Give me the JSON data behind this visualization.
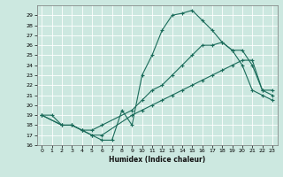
{
  "xlabel": "Humidex (Indice chaleur)",
  "bg_color": "#cce8e0",
  "grid_color": "#ffffff",
  "line_color": "#1a6b5a",
  "xlim": [
    -0.5,
    23.5
  ],
  "ylim": [
    16,
    30
  ],
  "xticks": [
    0,
    1,
    2,
    3,
    4,
    5,
    6,
    7,
    8,
    9,
    10,
    11,
    12,
    13,
    14,
    15,
    16,
    17,
    18,
    19,
    20,
    21,
    22,
    23
  ],
  "yticks": [
    16,
    17,
    18,
    19,
    20,
    21,
    22,
    23,
    24,
    25,
    26,
    27,
    28,
    29
  ],
  "line1_x": [
    0,
    1,
    2,
    3,
    4,
    5,
    6,
    7,
    8,
    9,
    10,
    11,
    12,
    13,
    14,
    15,
    16,
    17,
    18,
    19,
    20,
    21,
    22,
    23
  ],
  "line1_y": [
    19,
    19,
    18,
    18,
    17.5,
    17,
    16.5,
    16.5,
    19.5,
    18,
    23,
    25,
    27.5,
    29,
    29.2,
    29.5,
    28.5,
    27.5,
    26.3,
    25.5,
    24,
    21.5,
    21,
    20.5
  ],
  "line2_x": [
    0,
    2,
    3,
    4,
    5,
    6,
    9,
    10,
    11,
    12,
    13,
    14,
    15,
    16,
    17,
    18,
    19,
    20,
    21,
    22,
    23
  ],
  "line2_y": [
    19,
    18,
    18,
    17.5,
    17.5,
    18,
    19.5,
    20.5,
    21.5,
    22,
    23,
    24,
    25,
    26,
    26,
    26.3,
    25.5,
    25.5,
    24,
    21.5,
    21.5
  ],
  "line3_x": [
    0,
    2,
    3,
    4,
    5,
    6,
    9,
    10,
    11,
    12,
    13,
    14,
    15,
    16,
    17,
    18,
    19,
    20,
    21,
    22,
    23
  ],
  "line3_y": [
    19,
    18,
    18,
    17.5,
    17,
    17,
    19,
    19.5,
    20,
    20.5,
    21,
    21.5,
    22,
    22.5,
    23,
    23.5,
    24,
    24.5,
    24.5,
    21.5,
    21
  ]
}
